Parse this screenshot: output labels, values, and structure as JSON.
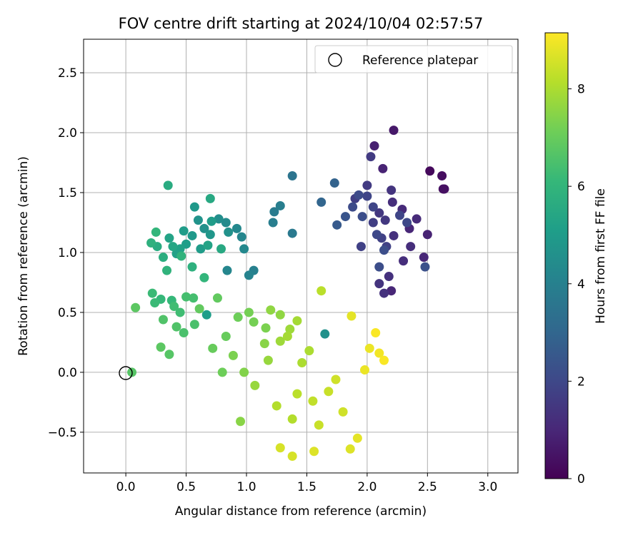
{
  "chart_data": {
    "type": "scatter",
    "title": "FOV centre drift starting at 2024/10/04 02:57:57",
    "xlabel": "Angular distance from reference (arcmin)",
    "ylabel": "Rotation from reference (arcmin)",
    "xlim": [
      -0.35,
      3.25
    ],
    "ylim": [
      -0.84,
      2.78
    ],
    "xticks": [
      0.0,
      0.5,
      1.0,
      1.5,
      2.0,
      2.5,
      3.0
    ],
    "xtick_labels": [
      "0.0",
      "0.5",
      "1.0",
      "1.5",
      "2.0",
      "2.5",
      "3.0"
    ],
    "yticks": [
      -0.5,
      0.0,
      0.5,
      1.0,
      1.5,
      2.0,
      2.5
    ],
    "ytick_labels": [
      "−0.5",
      "0.0",
      "0.5",
      "1.0",
      "1.5",
      "2.0",
      "2.5"
    ],
    "grid": true,
    "legend": {
      "placement": "upper right",
      "entries": [
        "Reference platepar"
      ]
    },
    "reference_point": {
      "x": 0.0,
      "y": 0.0,
      "marker": "open circle"
    },
    "colorbar": {
      "label": "Hours from first FF file",
      "colormap": "viridis",
      "range": [
        0,
        9.15
      ],
      "ticks": [
        0,
        2,
        4,
        6,
        8
      ],
      "tick_labels": [
        "0",
        "2",
        "4",
        "6",
        "8"
      ],
      "colors": [
        "#440154",
        "#482878",
        "#3e4989",
        "#31688e",
        "#26828e",
        "#1f9e89",
        "#35b779",
        "#6ece58",
        "#b5de2b",
        "#fde725"
      ]
    },
    "point_series": {
      "columns": [
        "x",
        "y",
        "hours"
      ],
      "points": [
        [
          2.52,
          1.68,
          0.2
        ],
        [
          2.62,
          1.64,
          0.3
        ],
        [
          2.64,
          1.53,
          0.4
        ],
        [
          2.63,
          1.53,
          0.4
        ],
        [
          2.22,
          2.02,
          0.6
        ],
        [
          2.06,
          1.89,
          0.8
        ],
        [
          2.13,
          1.7,
          0.9
        ],
        [
          2.5,
          1.15,
          0.9
        ],
        [
          2.2,
          0.68,
          1.0
        ],
        [
          2.47,
          0.96,
          1.0
        ],
        [
          2.35,
          1.2,
          1.0
        ],
        [
          2.41,
          1.28,
          1.1
        ],
        [
          2.29,
          1.36,
          1.1
        ],
        [
          2.21,
          1.42,
          1.2
        ],
        [
          2.3,
          0.93,
          1.2
        ],
        [
          2.36,
          1.05,
          1.2
        ],
        [
          2.18,
          0.8,
          1.3
        ],
        [
          2.22,
          1.14,
          1.3
        ],
        [
          2.14,
          0.66,
          1.3
        ],
        [
          2.1,
          0.74,
          1.4
        ],
        [
          2.2,
          1.52,
          1.4
        ],
        [
          2.1,
          1.33,
          1.5
        ],
        [
          2.15,
          1.27,
          1.5
        ],
        [
          2.03,
          1.8,
          1.6
        ],
        [
          2.0,
          1.56,
          1.6
        ],
        [
          2.05,
          1.25,
          1.7
        ],
        [
          1.9,
          1.45,
          1.7
        ],
        [
          2.12,
          1.12,
          1.8
        ],
        [
          1.95,
          1.05,
          1.8
        ],
        [
          2.16,
          1.05,
          1.8
        ],
        [
          2.05,
          1.38,
          1.9
        ],
        [
          2.0,
          1.47,
          1.9
        ],
        [
          2.27,
          1.31,
          1.9
        ],
        [
          2.33,
          1.25,
          2.0
        ],
        [
          2.08,
          1.15,
          2.0
        ],
        [
          1.88,
          1.38,
          2.1
        ],
        [
          1.93,
          1.48,
          2.1
        ],
        [
          1.96,
          1.3,
          2.2
        ],
        [
          2.1,
          0.88,
          2.2
        ],
        [
          2.14,
          1.02,
          2.2
        ],
        [
          2.48,
          0.88,
          2.3
        ],
        [
          1.82,
          1.3,
          2.4
        ],
        [
          1.75,
          1.23,
          2.6
        ],
        [
          1.73,
          1.58,
          2.9
        ],
        [
          1.62,
          1.42,
          3.0
        ],
        [
          1.38,
          1.64,
          3.5
        ],
        [
          1.38,
          1.16,
          3.7
        ],
        [
          1.23,
          1.34,
          3.8
        ],
        [
          1.22,
          1.25,
          3.9
        ],
        [
          1.28,
          1.39,
          3.9
        ],
        [
          1.06,
          0.85,
          4.0
        ],
        [
          1.02,
          0.81,
          4.1
        ],
        [
          0.96,
          1.13,
          4.2
        ],
        [
          0.84,
          0.85,
          4.2
        ],
        [
          0.98,
          1.03,
          4.3
        ],
        [
          0.92,
          1.2,
          4.3
        ],
        [
          0.83,
          1.25,
          4.4
        ],
        [
          0.77,
          1.28,
          4.5
        ],
        [
          0.85,
          1.17,
          4.6
        ],
        [
          1.65,
          0.32,
          4.6
        ],
        [
          0.65,
          1.2,
          4.6
        ],
        [
          0.6,
          1.27,
          4.7
        ],
        [
          0.7,
          1.15,
          4.8
        ],
        [
          0.57,
          1.38,
          4.9
        ],
        [
          0.55,
          1.14,
          4.9
        ],
        [
          0.71,
          1.26,
          5.0
        ],
        [
          0.48,
          1.18,
          5.0
        ],
        [
          0.62,
          1.03,
          5.0
        ],
        [
          0.67,
          0.48,
          5.1
        ],
        [
          0.5,
          1.07,
          5.1
        ],
        [
          0.45,
          1.03,
          5.2
        ],
        [
          0.42,
          0.99,
          5.2
        ],
        [
          0.36,
          1.12,
          5.3
        ],
        [
          0.68,
          1.06,
          5.3
        ],
        [
          0.39,
          1.05,
          5.4
        ],
        [
          0.79,
          1.03,
          5.5
        ],
        [
          0.7,
          1.45,
          5.5
        ],
        [
          0.35,
          1.56,
          5.6
        ],
        [
          0.26,
          1.05,
          5.6
        ],
        [
          0.31,
          0.96,
          5.7
        ],
        [
          0.21,
          1.08,
          5.8
        ],
        [
          0.55,
          0.88,
          5.8
        ],
        [
          0.34,
          0.85,
          5.9
        ],
        [
          0.46,
          0.97,
          5.9
        ],
        [
          0.65,
          0.79,
          6.0
        ],
        [
          0.25,
          1.17,
          6.0
        ],
        [
          0.38,
          0.6,
          6.1
        ],
        [
          0.29,
          0.61,
          6.1
        ],
        [
          0.24,
          0.58,
          6.2
        ],
        [
          0.22,
          0.66,
          6.2
        ],
        [
          0.4,
          0.55,
          6.3
        ],
        [
          0.45,
          0.5,
          6.3
        ],
        [
          0.5,
          0.63,
          6.4
        ],
        [
          0.56,
          0.62,
          6.4
        ],
        [
          0.57,
          0.4,
          6.5
        ],
        [
          0.48,
          0.33,
          6.5
        ],
        [
          0.42,
          0.38,
          6.6
        ],
        [
          0.31,
          0.44,
          6.6
        ],
        [
          0.36,
          0.15,
          6.7
        ],
        [
          0.05,
          0.0,
          6.7
        ],
        [
          0.08,
          0.54,
          6.8
        ],
        [
          0.29,
          0.21,
          6.8
        ],
        [
          0.61,
          0.53,
          6.9
        ],
        [
          0.76,
          0.62,
          6.9
        ],
        [
          0.72,
          0.2,
          7.0
        ],
        [
          0.83,
          0.3,
          7.0
        ],
        [
          0.93,
          0.46,
          7.1
        ],
        [
          0.8,
          0.0,
          7.1
        ],
        [
          1.02,
          0.5,
          7.2
        ],
        [
          1.06,
          0.42,
          7.2
        ],
        [
          0.89,
          0.14,
          7.3
        ],
        [
          1.16,
          0.37,
          7.3
        ],
        [
          0.98,
          0.0,
          7.4
        ],
        [
          0.95,
          -0.41,
          7.5
        ],
        [
          1.15,
          0.24,
          7.5
        ],
        [
          1.2,
          0.52,
          7.6
        ],
        [
          1.28,
          0.48,
          7.6
        ],
        [
          1.07,
          -0.11,
          7.7
        ],
        [
          1.18,
          0.1,
          7.7
        ],
        [
          1.28,
          0.26,
          7.8
        ],
        [
          1.36,
          0.36,
          7.8
        ],
        [
          1.34,
          0.3,
          7.9
        ],
        [
          1.42,
          0.43,
          7.9
        ],
        [
          1.46,
          0.08,
          8.0
        ],
        [
          1.52,
          0.18,
          8.0
        ],
        [
          1.25,
          -0.28,
          8.1
        ],
        [
          1.38,
          -0.39,
          8.1
        ],
        [
          1.42,
          -0.18,
          8.2
        ],
        [
          1.62,
          0.68,
          8.2
        ],
        [
          1.55,
          -0.24,
          8.3
        ],
        [
          1.6,
          -0.44,
          8.4
        ],
        [
          1.68,
          -0.16,
          8.4
        ],
        [
          1.74,
          -0.06,
          8.5
        ],
        [
          1.8,
          -0.33,
          8.5
        ],
        [
          1.28,
          -0.63,
          8.6
        ],
        [
          1.38,
          -0.7,
          8.6
        ],
        [
          1.56,
          -0.66,
          8.7
        ],
        [
          1.86,
          -0.64,
          8.7
        ],
        [
          1.92,
          -0.55,
          8.8
        ],
        [
          1.87,
          0.47,
          8.8
        ],
        [
          1.98,
          0.02,
          8.9
        ],
        [
          2.02,
          0.2,
          8.9
        ],
        [
          2.1,
          0.16,
          9.0
        ],
        [
          2.14,
          0.1,
          9.1
        ],
        [
          2.07,
          0.33,
          9.1
        ]
      ]
    }
  }
}
